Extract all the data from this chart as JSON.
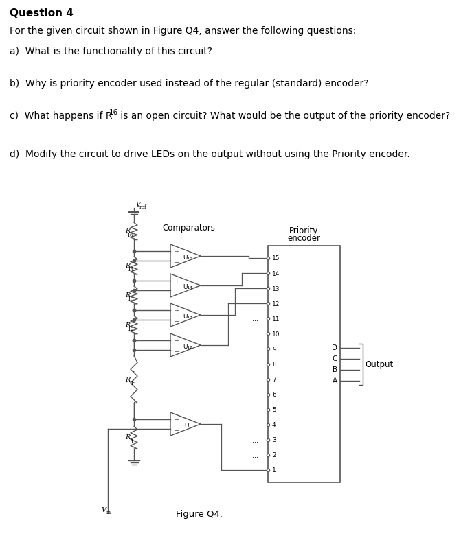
{
  "title": "Question 4",
  "intro": "For the given circuit shown in Figure Q4, answer the following questions:",
  "qa": "a)  What is the functionality of this circuit?",
  "qb": "b)  Why is priority encoder used instead of the regular (standard) encoder?",
  "qc_pre": "c)  What happens if R",
  "qc_sub": "16",
  "qc_post": " is an open circuit? What would be the output of the priority encoder?",
  "qd": "d)  Modify the circuit to drive LEDs on the output without using the Priority encoder.",
  "figure_label": "Figure Q4.",
  "bg_color": "#ffffff",
  "text_color": "#000000",
  "line_color": "#3a3a3a",
  "circuit_line_color": "#555555"
}
